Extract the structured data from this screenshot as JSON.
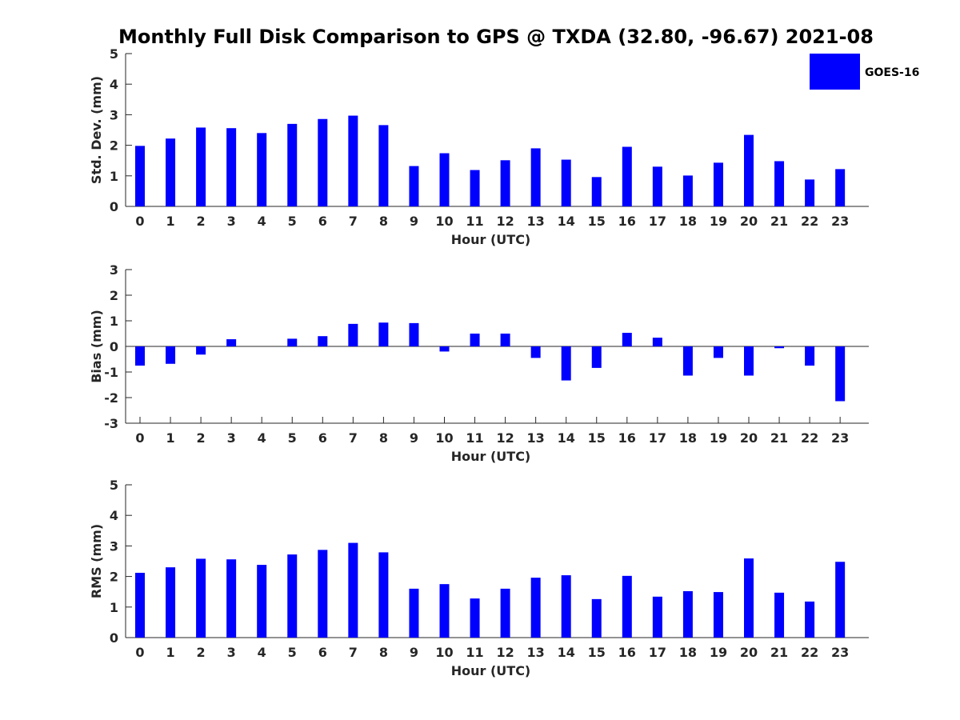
{
  "title": "Monthly Full Disk Comparison to GPS @ TXDA (32.80, -96.67) 2021-08",
  "legend": {
    "label": "GOES-16",
    "color": "#0000ff",
    "placement": "top-right"
  },
  "chart_data": [
    {
      "type": "bar",
      "categories": [
        "0",
        "1",
        "2",
        "3",
        "4",
        "5",
        "6",
        "7",
        "8",
        "9",
        "10",
        "11",
        "12",
        "13",
        "14",
        "15",
        "16",
        "17",
        "18",
        "19",
        "20",
        "21",
        "22",
        "23"
      ],
      "series": [
        {
          "name": "GOES-16",
          "color": "#0000ff",
          "values": [
            1.98,
            2.22,
            2.58,
            2.56,
            2.4,
            2.7,
            2.86,
            2.97,
            2.66,
            1.32,
            1.74,
            1.19,
            1.51,
            1.9,
            1.53,
            0.96,
            1.95,
            1.3,
            1.01,
            1.43,
            2.34,
            1.48,
            0.88,
            1.22
          ]
        }
      ],
      "xlabel": "Hour (UTC)",
      "ylabel": "Std. Dev. (mm)",
      "ylim": [
        0,
        5
      ],
      "yticks": [
        "0",
        "1",
        "2",
        "3",
        "4",
        "5"
      ],
      "grid": false
    },
    {
      "type": "bar",
      "categories": [
        "0",
        "1",
        "2",
        "3",
        "4",
        "5",
        "6",
        "7",
        "8",
        "9",
        "10",
        "11",
        "12",
        "13",
        "14",
        "15",
        "16",
        "17",
        "18",
        "19",
        "20",
        "21",
        "22",
        "23"
      ],
      "series": [
        {
          "name": "GOES-16",
          "color": "#0000ff",
          "values": [
            -0.75,
            -0.68,
            -0.32,
            0.28,
            0.0,
            0.3,
            0.4,
            0.88,
            0.93,
            0.91,
            -0.2,
            0.5,
            0.5,
            -0.45,
            -1.33,
            -0.84,
            0.53,
            0.34,
            -1.14,
            -0.45,
            -1.14,
            -0.07,
            -0.75,
            -2.14
          ]
        }
      ],
      "xlabel": "Hour (UTC)",
      "ylabel": "Bias (mm)",
      "ylim": [
        -3,
        3
      ],
      "yticks": [
        "-3",
        "-2",
        "-1",
        "0",
        "1",
        "2",
        "3"
      ],
      "grid": false
    },
    {
      "type": "bar",
      "categories": [
        "0",
        "1",
        "2",
        "3",
        "4",
        "5",
        "6",
        "7",
        "8",
        "9",
        "10",
        "11",
        "12",
        "13",
        "14",
        "15",
        "16",
        "17",
        "18",
        "19",
        "20",
        "21",
        "22",
        "23"
      ],
      "series": [
        {
          "name": "GOES-16",
          "color": "#0000ff",
          "values": [
            2.12,
            2.3,
            2.58,
            2.56,
            2.38,
            2.72,
            2.87,
            3.1,
            2.79,
            1.6,
            1.75,
            1.28,
            1.6,
            1.96,
            2.04,
            1.26,
            2.02,
            1.34,
            1.52,
            1.49,
            2.59,
            1.47,
            1.18,
            2.48
          ]
        }
      ],
      "xlabel": "Hour (UTC)",
      "ylabel": "RMS (mm)",
      "ylim": [
        0,
        5
      ],
      "yticks": [
        "0",
        "1",
        "2",
        "3",
        "4",
        "5"
      ],
      "grid": false
    }
  ]
}
